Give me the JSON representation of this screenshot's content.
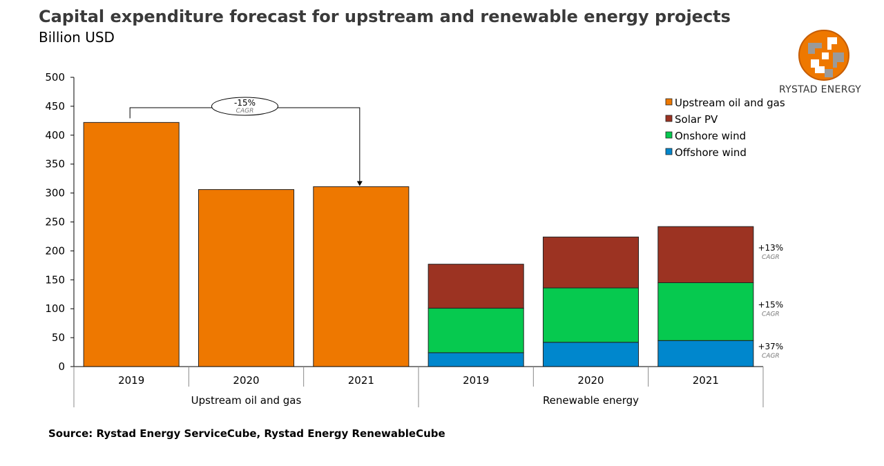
{
  "header": {
    "title": "Capital expenditure forecast for upstream and renewable energy projects",
    "subtitle": "Billion USD"
  },
  "logo": {
    "name": "RYSTAD ENERGY",
    "icon": "rystad-globe-logo"
  },
  "source": "Source: Rystad Energy ServiceCube, Rystad Energy RenewableCube",
  "colors": {
    "upstream": "#ee7800",
    "solar": "#9c3322",
    "onshore": "#06c94f",
    "offshore": "#0087cd"
  },
  "chart_data": {
    "type": "bar",
    "stacked": true,
    "ylim": [
      0,
      500
    ],
    "yticks": [
      0,
      50,
      100,
      150,
      200,
      250,
      300,
      350,
      400,
      450,
      500
    ],
    "groups": [
      {
        "label": "Upstream oil and gas",
        "categories": [
          "2019",
          "2020",
          "2021"
        ]
      },
      {
        "label": "Renewable energy",
        "categories": [
          "2019",
          "2020",
          "2021"
        ]
      }
    ],
    "series": [
      {
        "name": "Upstream oil and gas",
        "values": [
          422,
          306,
          311,
          null,
          null,
          null
        ]
      },
      {
        "name": "Solar PV",
        "values": [
          null,
          null,
          null,
          76,
          88,
          97
        ]
      },
      {
        "name": "Onshore wind",
        "values": [
          null,
          null,
          null,
          77,
          94,
          100
        ]
      },
      {
        "name": "Offshore wind",
        "values": [
          null,
          null,
          null,
          24,
          42,
          45
        ]
      }
    ],
    "legend": [
      "Upstream oil and gas",
      "Solar PV",
      "Onshore wind",
      "Offshore wind"
    ],
    "legend_placement": "top-right",
    "annotations": [
      {
        "value": "-15%",
        "sub": "CAGR",
        "target": "Upstream oil and gas"
      },
      {
        "value": "+13%",
        "sub": "CAGR",
        "target": "Solar PV"
      },
      {
        "value": "+15%",
        "sub": "CAGR",
        "target": "Onshore wind"
      },
      {
        "value": "+37%",
        "sub": "CAGR",
        "target": "Offshore wind"
      }
    ]
  }
}
